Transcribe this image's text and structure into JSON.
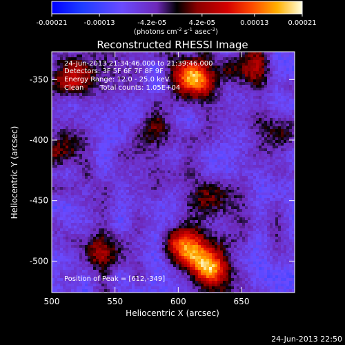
{
  "chart_data": {
    "type": "heatmap",
    "title": "Reconstructed RHESSI Image",
    "xlabel": "Heliocentric X (arcsec)",
    "ylabel": "Heliocentric Y (arcsec)",
    "xlim": [
      500,
      692
    ],
    "ylim": [
      -526,
      -327
    ],
    "x_ticks": [
      500,
      550,
      600,
      650
    ],
    "y_ticks": [
      -350,
      -400,
      -450,
      -500
    ],
    "x_tick_labels": [
      "500",
      "550",
      "600",
      "650"
    ],
    "y_tick_labels": [
      "-350",
      "-400",
      "-450",
      "-500"
    ],
    "colorbar": {
      "range": [
        -0.00021,
        0.00021
      ],
      "tick_values": [
        -0.00021,
        -0.00013,
        -4.2e-05,
        4.2e-05,
        0.00013,
        0.00021
      ],
      "tick_labels": [
        "-0.00021",
        "-0.00013",
        "-4.2e-05",
        "4.2e-05",
        "0.00013",
        "0.00021"
      ],
      "units_text": "(photons cm",
      "units_exp1": "-2",
      "units_mid": " s",
      "units_exp2": "-1",
      "units_mid2": " asec",
      "units_exp3": "-2",
      "units_close": ")"
    },
    "annotations": {
      "time_range": "24-Jun-2013 21:34:46.000 to 21:39:46.000",
      "detectors": "Detectors: 3F 5F 6F 7F 8F 9F",
      "energy": "Energy Range: 12.0 - 25.0 keV",
      "method": "Clean",
      "counts": "Total counts: 1.05E+04",
      "peak": "Position of Peak = [612,-349]"
    },
    "sources": [
      {
        "x": 612,
        "y": -349,
        "peak": 0.00021
      },
      {
        "x": 625,
        "y": -505,
        "peak": 0.00019
      },
      {
        "x": 607,
        "y": -488,
        "peak": 0.00016
      },
      {
        "x": 515,
        "y": -345,
        "peak": 0.00012
      },
      {
        "x": 655,
        "y": -340,
        "peak": 0.0001
      },
      {
        "x": 582,
        "y": -395,
        "peak": 8e-05
      },
      {
        "x": 535,
        "y": -492,
        "peak": 9e-05
      },
      {
        "x": 680,
        "y": -395,
        "peak": 7e-05
      },
      {
        "x": 620,
        "y": -448,
        "peak": 6e-05
      },
      {
        "x": 510,
        "y": -408,
        "peak": 7e-05
      }
    ]
  },
  "footer_timestamp": "24-Jun-2013 22:50"
}
